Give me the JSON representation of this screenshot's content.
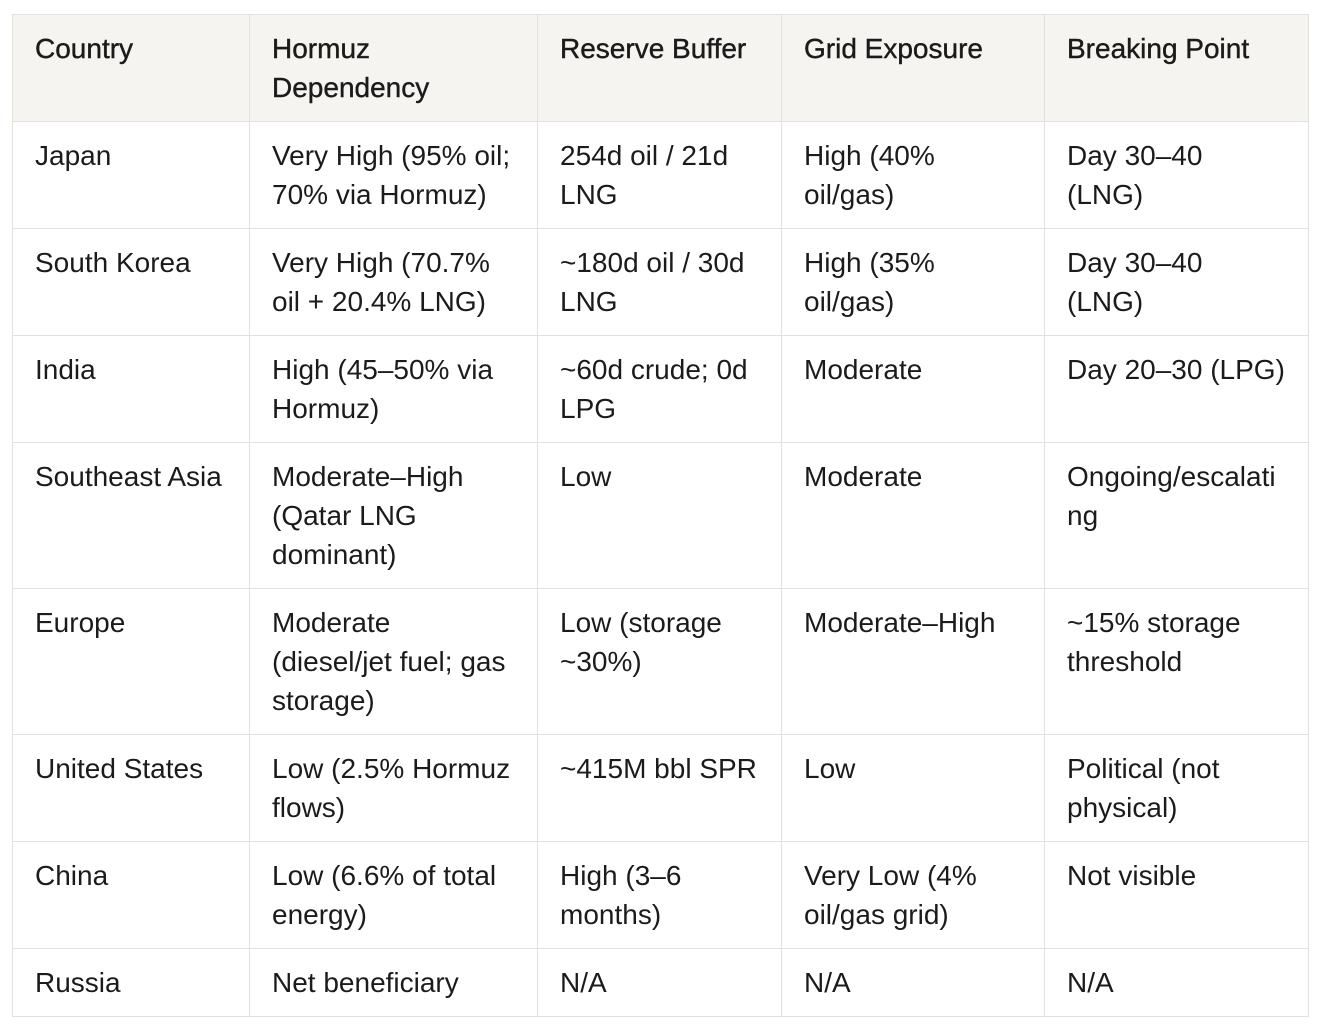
{
  "table": {
    "columns": [
      {
        "label": "Country"
      },
      {
        "label": "Hormuz Dependency"
      },
      {
        "label": "Reserve Buffer"
      },
      {
        "label": "Grid Exposure"
      },
      {
        "label": "Breaking Point"
      }
    ],
    "rows": [
      [
        "Japan",
        "Very High (95% oil; 70% via Hormuz)",
        "254d oil / 21d LNG",
        "High (40% oil/gas)",
        "Day 30–40 (LNG)"
      ],
      [
        "South Korea",
        "Very High (70.7% oil + 20.4% LNG)",
        "~180d oil / 30d LNG",
        "High (35% oil/gas)",
        "Day 30–40 (LNG)"
      ],
      [
        "India",
        "High (45–50% via Hormuz)",
        "~60d crude; 0d LPG",
        "Moderate",
        "Day 20–30 (LPG)"
      ],
      [
        "Southeast Asia",
        "Moderate–High (Qatar LNG dominant)",
        "Low",
        "Moderate",
        "Ongoing/escalating"
      ],
      [
        "Europe",
        "Moderate (diesel/jet fuel; gas storage)",
        "Low (storage ~30%)",
        "Moderate–High",
        "~15% storage threshold"
      ],
      [
        "United States",
        "Low (2.5% Hormuz flows)",
        "~415M bbl SPR",
        "Low",
        "Political (not physical)"
      ],
      [
        "China",
        "Low (6.6% of total energy)",
        "High (3–6 months)",
        "Very Low (4% oil/gas grid)",
        "Not visible"
      ],
      [
        "Russia",
        "Net beneficiary",
        "N/A",
        "N/A",
        "N/A"
      ]
    ],
    "colors": {
      "header_bg": "#f5f4f0",
      "border": "#e3e1dc",
      "text": "#1b1b1b",
      "page_bg": "#ffffff"
    }
  }
}
